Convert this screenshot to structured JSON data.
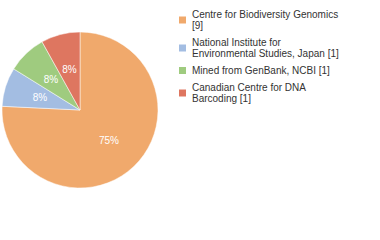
{
  "chart_data": {
    "type": "pie",
    "categories": [
      "Centre for Biodiversity Genomics [9]",
      "National Institute for Environmental Studies, Japan [1]",
      "Mined from GenBank, NCBI [1]",
      "Canadian Centre for DNA Barcoding [1]"
    ],
    "values": [
      75,
      8,
      8,
      8
    ],
    "value_labels": [
      "75%",
      "8%",
      "8%",
      "8%"
    ],
    "colors": [
      "#f0a96c",
      "#a3bde2",
      "#9fcb7f",
      "#de7660"
    ],
    "data_labels": true,
    "legend": "right"
  }
}
